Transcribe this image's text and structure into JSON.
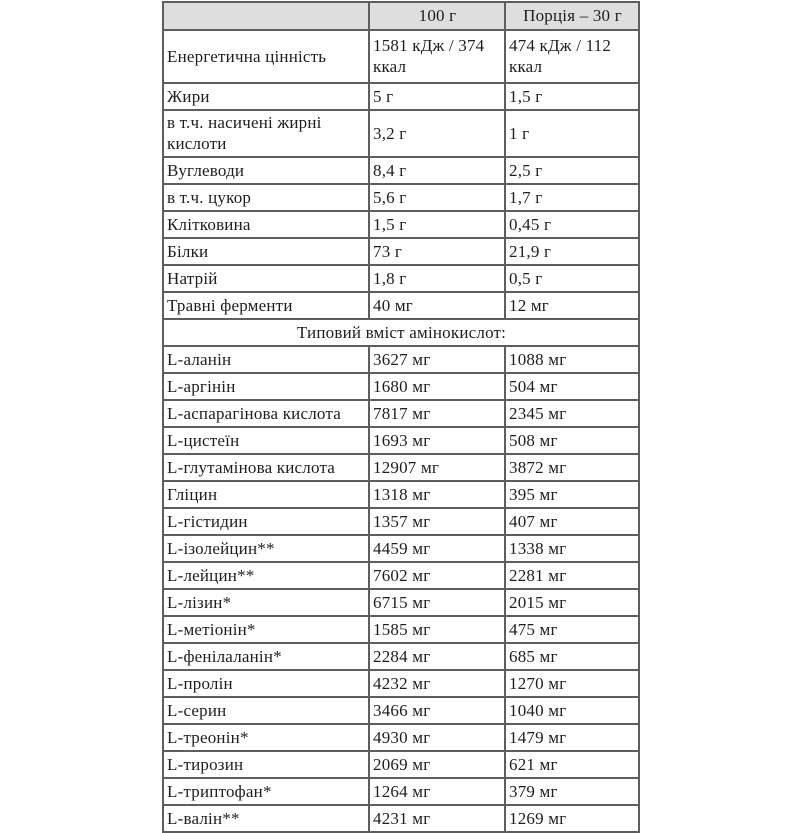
{
  "colors": {
    "header_bg": "#dedede",
    "border": "#5e5e5e",
    "text": "#1e1e1e",
    "page_bg": "#ffffff"
  },
  "table": {
    "columns": [
      "",
      "100 г",
      "Порція – 30 г"
    ],
    "nutrition_rows": [
      {
        "label": "Енергетична цінність",
        "per_100g": "1581 кДж / 374 ккал",
        "per_portion": "474 кДж / 112 ккал"
      },
      {
        "label": "Жири",
        "per_100g": "5 г",
        "per_portion": "1,5 г"
      },
      {
        "label": "в т.ч. насичені жирні кислоти",
        "per_100g": "3,2 г",
        "per_portion": "1 г"
      },
      {
        "label": "Вуглеводи",
        "per_100g": "8,4 г",
        "per_portion": "2,5 г"
      },
      {
        "label": "в т.ч. цукор",
        "per_100g": "5,6 г",
        "per_portion": "1,7 г"
      },
      {
        "label": "Клітковина",
        "per_100g": "1,5 г",
        "per_portion": "0,45 г"
      },
      {
        "label": "Білки",
        "per_100g": "73 г",
        "per_portion": "21,9 г"
      },
      {
        "label": "Натрій",
        "per_100g": "1,8 г",
        "per_portion": "0,5 г"
      },
      {
        "label": "Травні ферменти",
        "per_100g": "40 мг",
        "per_portion": "12 мг"
      }
    ],
    "section_title": "Типовий вміст амінокислот:",
    "amino_acid_rows": [
      {
        "label": "L-аланін",
        "per_100g": "3627 мг",
        "per_portion": "1088 мг"
      },
      {
        "label": "L-аргінін",
        "per_100g": "1680 мг",
        "per_portion": "504 мг"
      },
      {
        "label": "L-аспарагінова кислота",
        "per_100g": "7817 мг",
        "per_portion": "2345 мг"
      },
      {
        "label": "L-цистеїн",
        "per_100g": "1693 мг",
        "per_portion": "508 мг"
      },
      {
        "label": "L-глутамінова кислота",
        "per_100g": "12907 мг",
        "per_portion": "3872 мг"
      },
      {
        "label": "Гліцин",
        "per_100g": "1318 мг",
        "per_portion": "395 мг"
      },
      {
        "label": "L-гістидин",
        "per_100g": "1357 мг",
        "per_portion": "407 мг"
      },
      {
        "label": "L-ізолейцин**",
        "per_100g": "4459 мг",
        "per_portion": "1338 мг"
      },
      {
        "label": "L-лейцин**",
        "per_100g": "7602 мг",
        "per_portion": "2281 мг"
      },
      {
        "label": "L-лізин*",
        "per_100g": "6715 мг",
        "per_portion": "2015 мг"
      },
      {
        "label": "L-метіонін*",
        "per_100g": "1585 мг",
        "per_portion": "475 мг"
      },
      {
        "label": "L-фенілаланін*",
        "per_100g": "2284 мг",
        "per_portion": "685 мг"
      },
      {
        "label": "L-пролін",
        "per_100g": "4232 мг",
        "per_portion": "1270 мг"
      },
      {
        "label": "L-серин",
        "per_100g": "3466 мг",
        "per_portion": "1040 мг"
      },
      {
        "label": "L-треонін*",
        "per_100g": "4930 мг",
        "per_portion": "1479 мг"
      },
      {
        "label": "L-тирозин",
        "per_100g": "2069 мг",
        "per_portion": "621 мг"
      },
      {
        "label": "L-триптофан*",
        "per_100g": "1264 мг",
        "per_portion": "379 мг"
      },
      {
        "label": "L-валін**",
        "per_100g": "4231 мг",
        "per_portion": "1269 мг"
      }
    ]
  }
}
